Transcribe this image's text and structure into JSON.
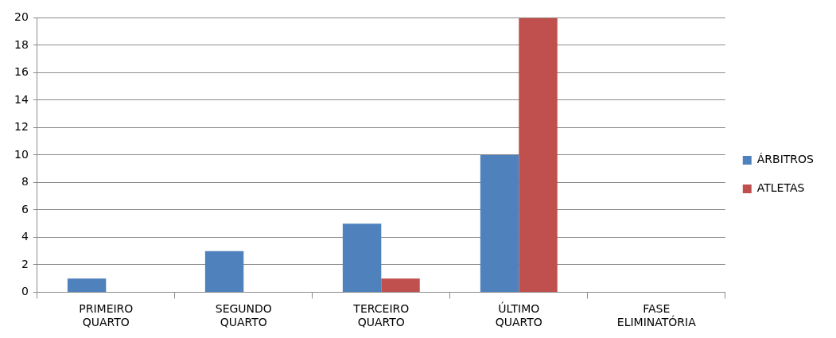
{
  "chart_data": {
    "type": "bar",
    "categories": [
      "PRIMEIRO QUARTO",
      "SEGUNDO QUARTO",
      "TERCEIRO QUARTO",
      "ÚLTIMO QUARTO",
      "FASE ELIMINATÓRIA"
    ],
    "series": [
      {
        "name": "ÁRBITROS",
        "color": "#4f81bd",
        "values": [
          1,
          3,
          5,
          10,
          0
        ]
      },
      {
        "name": "ATLETAS",
        "color": "#c0504d",
        "values": [
          0,
          0,
          1,
          20,
          0
        ]
      }
    ],
    "ylim": [
      0,
      20
    ],
    "yticks": [
      0,
      2,
      4,
      6,
      8,
      10,
      12,
      14,
      16,
      18,
      20
    ],
    "grid": "y",
    "legend": "right"
  }
}
